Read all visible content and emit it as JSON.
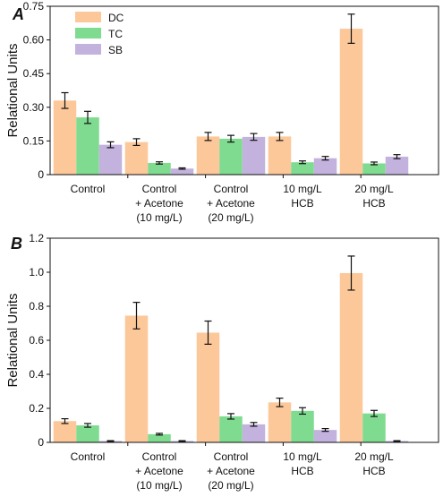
{
  "colors": {
    "DC": "#fcc89a",
    "TC": "#7fdb8f",
    "SB": "#c3b2dd"
  },
  "chart_data": [
    {
      "panel": "A",
      "type": "bar",
      "ylabel": "Relational Units",
      "ylim": [
        0,
        0.75
      ],
      "yticks": [
        "0",
        "0.15",
        "0.30",
        "0.45",
        "0.60",
        "0.75"
      ],
      "categories": [
        [
          "Control"
        ],
        [
          "Control",
          "+ Acetone",
          "(10 mg/L)"
        ],
        [
          "Control",
          "+ Acetone",
          "(20 mg/L)"
        ],
        [
          "10 mg/L",
          "HCB"
        ],
        [
          "20 mg/L",
          "HCB"
        ]
      ],
      "legend": {
        "placement": "top-left",
        "entries": [
          "DC",
          "TC",
          "SB"
        ]
      },
      "series": [
        {
          "name": "DC",
          "values": [
            0.33,
            0.145,
            0.17,
            0.17,
            0.65
          ],
          "errors": [
            0.035,
            0.015,
            0.018,
            0.018,
            0.065
          ]
        },
        {
          "name": "TC",
          "values": [
            0.255,
            0.052,
            0.16,
            0.055,
            0.05
          ],
          "errors": [
            0.027,
            0.005,
            0.015,
            0.006,
            0.006
          ]
        },
        {
          "name": "SB",
          "values": [
            0.133,
            0.027,
            0.168,
            0.073,
            0.08
          ],
          "errors": [
            0.013,
            0.003,
            0.015,
            0.008,
            0.009
          ]
        }
      ]
    },
    {
      "panel": "B",
      "type": "bar",
      "ylabel": "Relational Units",
      "ylim": [
        0,
        1.2
      ],
      "yticks": [
        "0",
        "0.2",
        "0.4",
        "0.6",
        "0.8",
        "1.0",
        "1.2"
      ],
      "categories": [
        [
          "Control"
        ],
        [
          "Control",
          "+ Acetone",
          "(10 mg/L)"
        ],
        [
          "Control",
          "+ Acetone",
          "(20 mg/L)"
        ],
        [
          "10 mg/L",
          "HCB"
        ],
        [
          "20 mg/L",
          "HCB"
        ]
      ],
      "series": [
        {
          "name": "DC",
          "values": [
            0.125,
            0.745,
            0.645,
            0.235,
            0.995
          ],
          "errors": [
            0.014,
            0.078,
            0.068,
            0.025,
            0.1
          ]
        },
        {
          "name": "TC",
          "values": [
            0.1,
            0.048,
            0.153,
            0.185,
            0.17
          ],
          "errors": [
            0.011,
            0.005,
            0.016,
            0.019,
            0.018
          ]
        },
        {
          "name": "SB",
          "values": [
            0.008,
            0.008,
            0.106,
            0.073,
            0.008
          ],
          "errors": [
            0.002,
            0.002,
            0.011,
            0.008,
            0.002
          ]
        }
      ]
    }
  ]
}
